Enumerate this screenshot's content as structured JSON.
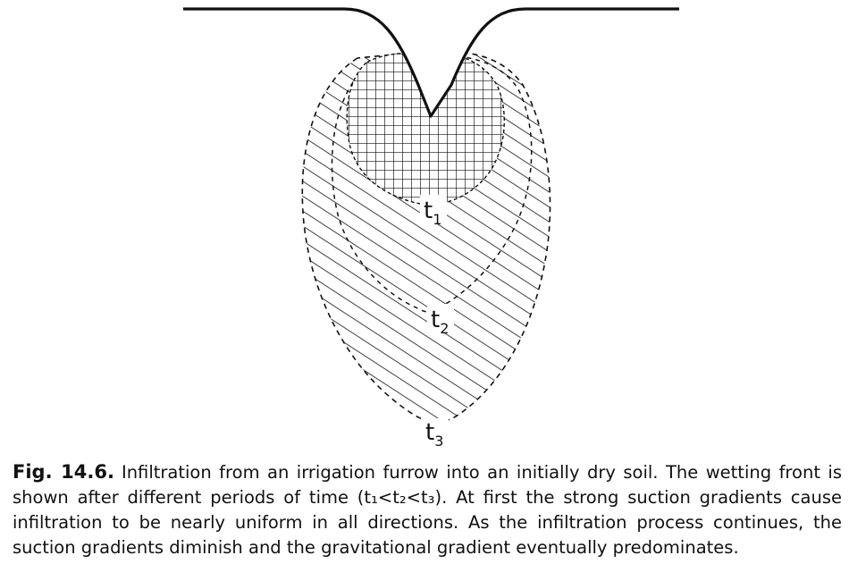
{
  "figure": {
    "labels": {
      "t1": {
        "main": "t",
        "sub": "1"
      },
      "t2": {
        "main": "t",
        "sub": "2"
      },
      "t3": {
        "main": "t",
        "sub": "3"
      }
    }
  },
  "caption": {
    "label": "Fig. 14.6.",
    "text": "Infiltration from an irrigation furrow into an initially dry soil. The wetting front is shown after different periods of time (t₁<t₂<t₃). At first the strong suction gradients cause infiltration to be nearly uniform in all directions. As the infiltration process continues, the suction gradients diminish and the gravitational gradient eventually predominates."
  }
}
